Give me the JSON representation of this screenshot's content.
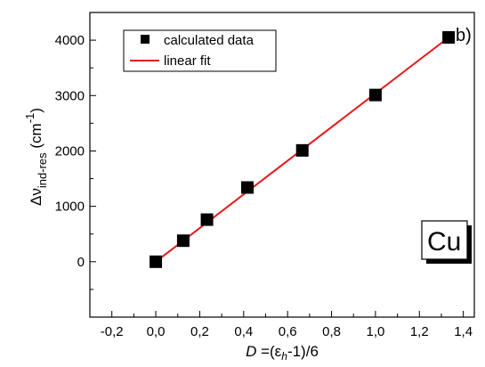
{
  "chart_data": {
    "type": "scatter",
    "panel_label": "b)",
    "element_label": "Cu",
    "xlabel": {
      "italic": "D",
      "a": " =(ε",
      "sub": "h",
      "b": "-1)/6"
    },
    "ylabel": {
      "main": "Δν",
      "sub": "ind-res",
      "unit_a": " (cm",
      "sup": "-1",
      "unit_b": ")"
    },
    "xlim": [
      -0.3,
      1.45
    ],
    "ylim": [
      -1000,
      4500
    ],
    "xticks": [
      -0.2,
      0.0,
      0.2,
      0.4,
      0.6,
      0.8,
      1.0,
      1.2,
      1.4
    ],
    "xtick_labels": [
      "-0,2",
      "0,0",
      "0,2",
      "0,4",
      "0,6",
      "0,8",
      "1,0",
      "1,2",
      "1,4"
    ],
    "yticks": [
      0,
      1000,
      2000,
      3000,
      4000
    ],
    "ytick_labels": [
      "0",
      "1000",
      "2000",
      "3000",
      "4000"
    ],
    "series": [
      {
        "name": "calculated data",
        "kind": "markers",
        "marker": "square",
        "color": "#000000",
        "x": [
          0.0,
          0.125,
          0.233,
          0.417,
          0.667,
          1.0,
          1.333
        ],
        "y": [
          0,
          380,
          760,
          1340,
          2010,
          3010,
          4050
        ]
      },
      {
        "name": "linear fit",
        "kind": "line",
        "color": "#e8191b",
        "x": [
          0.0,
          1.333
        ],
        "y": [
          0,
          4050
        ]
      }
    ],
    "legend_position": "top-left",
    "grid": false
  }
}
